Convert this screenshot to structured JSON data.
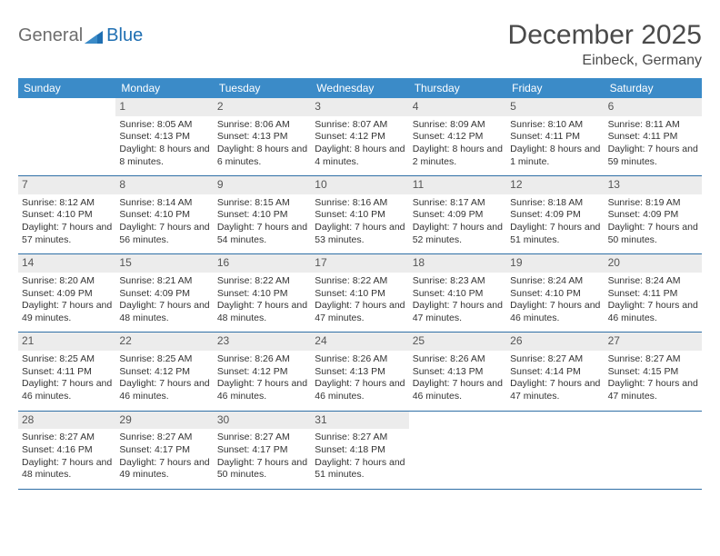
{
  "brand": {
    "part1": "General",
    "part2": "Blue"
  },
  "title": "December 2025",
  "location": "Einbeck, Germany",
  "colors": {
    "header_bg": "#3b8bc8",
    "header_text": "#ffffff",
    "daynum_bg": "#ececec",
    "daynum_text": "#555555",
    "row_border": "#2f6fa6",
    "body_text": "#333333",
    "logo_gray": "#6d6d6d",
    "logo_blue": "#1f6fb2"
  },
  "weekdays": [
    "Sunday",
    "Monday",
    "Tuesday",
    "Wednesday",
    "Thursday",
    "Friday",
    "Saturday"
  ],
  "weeks": [
    [
      {
        "n": "",
        "sunrise": "",
        "sunset": "",
        "daylight": ""
      },
      {
        "n": "1",
        "sunrise": "Sunrise: 8:05 AM",
        "sunset": "Sunset: 4:13 PM",
        "daylight": "Daylight: 8 hours and 8 minutes."
      },
      {
        "n": "2",
        "sunrise": "Sunrise: 8:06 AM",
        "sunset": "Sunset: 4:13 PM",
        "daylight": "Daylight: 8 hours and 6 minutes."
      },
      {
        "n": "3",
        "sunrise": "Sunrise: 8:07 AM",
        "sunset": "Sunset: 4:12 PM",
        "daylight": "Daylight: 8 hours and 4 minutes."
      },
      {
        "n": "4",
        "sunrise": "Sunrise: 8:09 AM",
        "sunset": "Sunset: 4:12 PM",
        "daylight": "Daylight: 8 hours and 2 minutes."
      },
      {
        "n": "5",
        "sunrise": "Sunrise: 8:10 AM",
        "sunset": "Sunset: 4:11 PM",
        "daylight": "Daylight: 8 hours and 1 minute."
      },
      {
        "n": "6",
        "sunrise": "Sunrise: 8:11 AM",
        "sunset": "Sunset: 4:11 PM",
        "daylight": "Daylight: 7 hours and 59 minutes."
      }
    ],
    [
      {
        "n": "7",
        "sunrise": "Sunrise: 8:12 AM",
        "sunset": "Sunset: 4:10 PM",
        "daylight": "Daylight: 7 hours and 57 minutes."
      },
      {
        "n": "8",
        "sunrise": "Sunrise: 8:14 AM",
        "sunset": "Sunset: 4:10 PM",
        "daylight": "Daylight: 7 hours and 56 minutes."
      },
      {
        "n": "9",
        "sunrise": "Sunrise: 8:15 AM",
        "sunset": "Sunset: 4:10 PM",
        "daylight": "Daylight: 7 hours and 54 minutes."
      },
      {
        "n": "10",
        "sunrise": "Sunrise: 8:16 AM",
        "sunset": "Sunset: 4:10 PM",
        "daylight": "Daylight: 7 hours and 53 minutes."
      },
      {
        "n": "11",
        "sunrise": "Sunrise: 8:17 AM",
        "sunset": "Sunset: 4:09 PM",
        "daylight": "Daylight: 7 hours and 52 minutes."
      },
      {
        "n": "12",
        "sunrise": "Sunrise: 8:18 AM",
        "sunset": "Sunset: 4:09 PM",
        "daylight": "Daylight: 7 hours and 51 minutes."
      },
      {
        "n": "13",
        "sunrise": "Sunrise: 8:19 AM",
        "sunset": "Sunset: 4:09 PM",
        "daylight": "Daylight: 7 hours and 50 minutes."
      }
    ],
    [
      {
        "n": "14",
        "sunrise": "Sunrise: 8:20 AM",
        "sunset": "Sunset: 4:09 PM",
        "daylight": "Daylight: 7 hours and 49 minutes."
      },
      {
        "n": "15",
        "sunrise": "Sunrise: 8:21 AM",
        "sunset": "Sunset: 4:09 PM",
        "daylight": "Daylight: 7 hours and 48 minutes."
      },
      {
        "n": "16",
        "sunrise": "Sunrise: 8:22 AM",
        "sunset": "Sunset: 4:10 PM",
        "daylight": "Daylight: 7 hours and 48 minutes."
      },
      {
        "n": "17",
        "sunrise": "Sunrise: 8:22 AM",
        "sunset": "Sunset: 4:10 PM",
        "daylight": "Daylight: 7 hours and 47 minutes."
      },
      {
        "n": "18",
        "sunrise": "Sunrise: 8:23 AM",
        "sunset": "Sunset: 4:10 PM",
        "daylight": "Daylight: 7 hours and 47 minutes."
      },
      {
        "n": "19",
        "sunrise": "Sunrise: 8:24 AM",
        "sunset": "Sunset: 4:10 PM",
        "daylight": "Daylight: 7 hours and 46 minutes."
      },
      {
        "n": "20",
        "sunrise": "Sunrise: 8:24 AM",
        "sunset": "Sunset: 4:11 PM",
        "daylight": "Daylight: 7 hours and 46 minutes."
      }
    ],
    [
      {
        "n": "21",
        "sunrise": "Sunrise: 8:25 AM",
        "sunset": "Sunset: 4:11 PM",
        "daylight": "Daylight: 7 hours and 46 minutes."
      },
      {
        "n": "22",
        "sunrise": "Sunrise: 8:25 AM",
        "sunset": "Sunset: 4:12 PM",
        "daylight": "Daylight: 7 hours and 46 minutes."
      },
      {
        "n": "23",
        "sunrise": "Sunrise: 8:26 AM",
        "sunset": "Sunset: 4:12 PM",
        "daylight": "Daylight: 7 hours and 46 minutes."
      },
      {
        "n": "24",
        "sunrise": "Sunrise: 8:26 AM",
        "sunset": "Sunset: 4:13 PM",
        "daylight": "Daylight: 7 hours and 46 minutes."
      },
      {
        "n": "25",
        "sunrise": "Sunrise: 8:26 AM",
        "sunset": "Sunset: 4:13 PM",
        "daylight": "Daylight: 7 hours and 46 minutes."
      },
      {
        "n": "26",
        "sunrise": "Sunrise: 8:27 AM",
        "sunset": "Sunset: 4:14 PM",
        "daylight": "Daylight: 7 hours and 47 minutes."
      },
      {
        "n": "27",
        "sunrise": "Sunrise: 8:27 AM",
        "sunset": "Sunset: 4:15 PM",
        "daylight": "Daylight: 7 hours and 47 minutes."
      }
    ],
    [
      {
        "n": "28",
        "sunrise": "Sunrise: 8:27 AM",
        "sunset": "Sunset: 4:16 PM",
        "daylight": "Daylight: 7 hours and 48 minutes."
      },
      {
        "n": "29",
        "sunrise": "Sunrise: 8:27 AM",
        "sunset": "Sunset: 4:17 PM",
        "daylight": "Daylight: 7 hours and 49 minutes."
      },
      {
        "n": "30",
        "sunrise": "Sunrise: 8:27 AM",
        "sunset": "Sunset: 4:17 PM",
        "daylight": "Daylight: 7 hours and 50 minutes."
      },
      {
        "n": "31",
        "sunrise": "Sunrise: 8:27 AM",
        "sunset": "Sunset: 4:18 PM",
        "daylight": "Daylight: 7 hours and 51 minutes."
      },
      {
        "n": "",
        "sunrise": "",
        "sunset": "",
        "daylight": ""
      },
      {
        "n": "",
        "sunrise": "",
        "sunset": "",
        "daylight": ""
      },
      {
        "n": "",
        "sunrise": "",
        "sunset": "",
        "daylight": ""
      }
    ]
  ]
}
